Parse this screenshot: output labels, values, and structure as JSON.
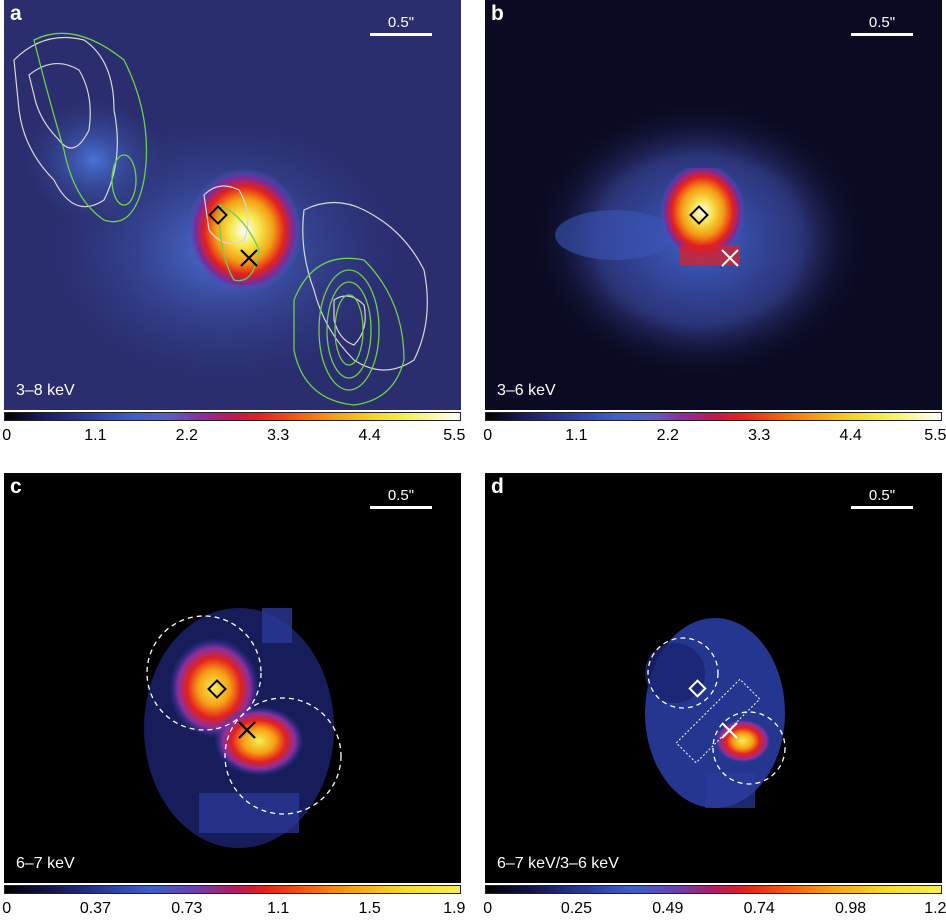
{
  "figure": {
    "panels": [
      {
        "id": "a",
        "label": "a",
        "scale": "0.5\"",
        "energy": "3–8 keV",
        "ticks": [
          "0",
          "1.1",
          "2.2",
          "3.3",
          "4.4",
          "5.5"
        ]
      },
      {
        "id": "b",
        "label": "b",
        "scale": "0.5\"",
        "energy": "3–6 keV",
        "ticks": [
          "0",
          "1.1",
          "2.2",
          "3.3",
          "4.4",
          "5.5"
        ]
      },
      {
        "id": "c",
        "label": "c",
        "scale": "0.5\"",
        "energy": "6–7 keV",
        "ticks": [
          "0",
          "0.37",
          "0.73",
          "1.1",
          "1.5",
          "1.9"
        ]
      },
      {
        "id": "d",
        "label": "d",
        "scale": "0.5\"",
        "energy": "6–7 keV/3–6 keV",
        "ticks": [
          "0",
          "0.25",
          "0.49",
          "0.74",
          "0.98",
          "1.2"
        ]
      }
    ],
    "colors": {
      "background_a": "#2a2d6e",
      "background_b": "#0a0a22",
      "background_c": "#000000",
      "background_d": "#000000",
      "contour_green": "#6fcf4a",
      "contour_white": "#d8d8d8"
    }
  }
}
